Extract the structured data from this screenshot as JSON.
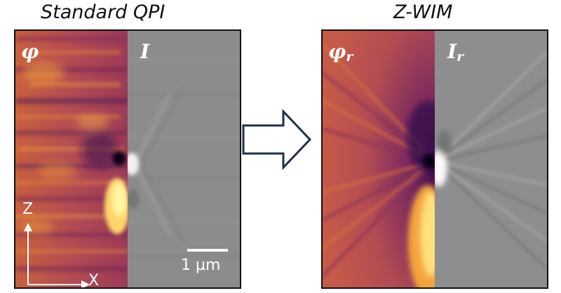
{
  "titles": {
    "left": "Standard QPI",
    "right": "Z-WIM"
  },
  "panel_labels": {
    "phi": "φ",
    "i": "I",
    "phi_r_base": "φ",
    "i_r_base": "I",
    "subscript": "r"
  },
  "scale_bar": {
    "label": "1 µm",
    "value_um": 1
  },
  "axes": {
    "vertical": "Z",
    "horizontal": "X"
  },
  "colors": {
    "phase_dark": "#3a0f4e",
    "phase_mid": "#b04a52",
    "phase_bright": "#f5a53a",
    "phase_peak": "#fff6a0",
    "intensity_gray": "#8c8c8c",
    "frame": "#111111",
    "arrow_fill": "#ffffff",
    "arrow_stroke": "#1f2f4a"
  },
  "icons": {
    "transform_arrow": "right-arrow-icon"
  }
}
